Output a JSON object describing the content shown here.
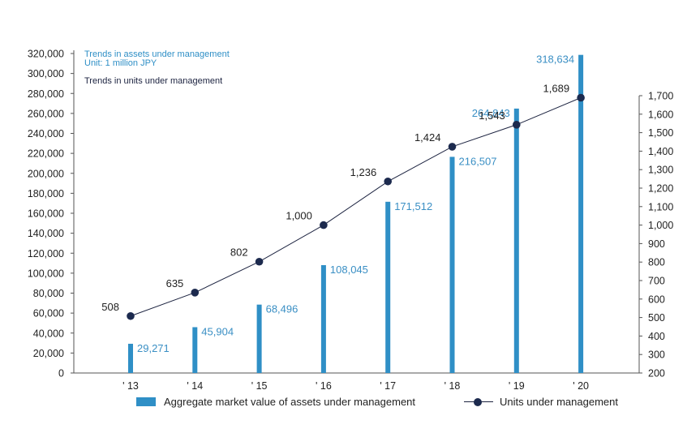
{
  "chart_data": {
    "type": "bar+line",
    "categories": [
      "' 13",
      "' 14",
      "' 15",
      "' 16",
      "' 17",
      "' 18",
      "' 19",
      "' 20"
    ],
    "series": [
      {
        "name": "Aggregate market value of assets under management",
        "type": "bar",
        "axis": "left",
        "values": [
          29271,
          45904,
          68496,
          108045,
          171512,
          216507,
          264843,
          318634
        ],
        "labels": [
          "29,271",
          "45,904",
          "68,496",
          "108,045",
          "171,512",
          "216,507",
          "264,843",
          "318,634"
        ]
      },
      {
        "name": "Units under management",
        "type": "line",
        "axis": "right",
        "values": [
          508,
          635,
          802,
          1000,
          1236,
          1424,
          1543,
          1689
        ],
        "labels": [
          "508",
          "635",
          "802",
          "1,000",
          "1,236",
          "1,424",
          "1,543",
          "1,689"
        ]
      }
    ],
    "left_axis": {
      "ylim": [
        0,
        320000
      ],
      "ticks": [
        "0",
        "20,000",
        "40,000",
        "60,000",
        "80,000",
        "100,000",
        "120,000",
        "140,000",
        "160,000",
        "180,000",
        "200,000",
        "220,000",
        "240,000",
        "260,000",
        "280,000",
        "300,000",
        "320,000"
      ]
    },
    "right_axis": {
      "ylim": [
        200,
        1700
      ],
      "ticks": [
        "200",
        "300",
        "400",
        "500",
        "600",
        "700",
        "800",
        "900",
        "1,000",
        "1,100",
        "1,200",
        "1,300",
        "1,400",
        "1,500",
        "1,600",
        "1,700"
      ]
    },
    "annotations": {
      "assets_title": "Trends in assets under management",
      "assets_unit": "Unit: 1 million JPY",
      "units_title": "Trends in units under management"
    },
    "legend": {
      "placement": "bottom",
      "items": [
        "Aggregate market value of assets under management",
        "Units under management"
      ]
    },
    "grid": false
  },
  "colors": {
    "bar": "#2f8fc6",
    "bar_label": "#3a8fc4",
    "line": "#1c2340",
    "marker": "#1c2a4e",
    "axis": "#555555",
    "tick_text": "#222222"
  }
}
